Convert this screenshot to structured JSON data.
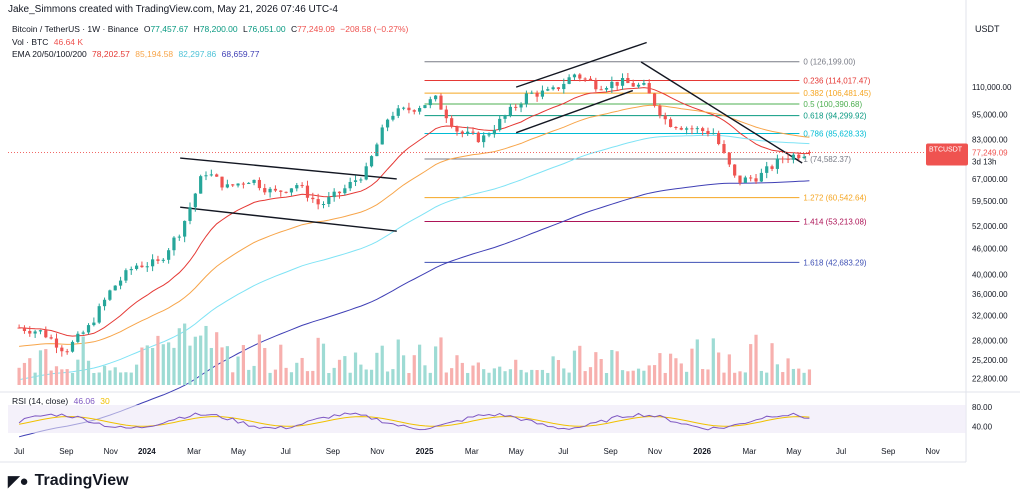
{
  "header": {
    "author_line": "Jake_Simmons created with TradingView.com, May 21, 2026 07:46 UTC-4",
    "currency": "USDT"
  },
  "legend": {
    "symbol": "Bitcoin / TetherUS · 1W · Binance",
    "o_label": "O",
    "o": "77,457.67",
    "h_label": "H",
    "h": "78,200.00",
    "l_label": "L",
    "l": "76,051.00",
    "c_label": "C",
    "c": "77,249.09",
    "change": "−208.58 (−0.27%)",
    "vol_label": "Vol · BTC",
    "vol": "46.64 K",
    "ema_label": "EMA 20/50/100/200",
    "ema20": "78,202.57",
    "ema50": "85,194.58",
    "ema100": "82,297.86",
    "ema200": "68,659.77",
    "rsi_label": "RSI (14, close)",
    "rsi": "46.06",
    "rsi_ma_partial": "30"
  },
  "colors": {
    "up": "#26a69a",
    "down": "#ef5350",
    "ema20": "#e53935",
    "ema50": "#f7a54a",
    "ema100": "#7fe3f5",
    "ema200": "#3f3fb5",
    "rsi": "#7e57c2",
    "rsi_ma": "#f0c000",
    "price_tag": "#ef5350"
  },
  "price_tag": {
    "symbol": "BTCUSDT",
    "price": "77,249.09",
    "countdown": "3d 13h"
  },
  "chart_data": {
    "type": "candlestick",
    "title": "Bitcoin / TetherUS · 1W · Binance",
    "y_scale": "log",
    "y_ticks": [
      "110,000.00",
      "95,000.00",
      "83,000.00",
      "67,000.00",
      "59,500.00",
      "52,000.00",
      "46,000.00",
      "40,000.00",
      "36,000.00",
      "32,000.00",
      "28,000.00",
      "25,200.00",
      "22,800.00"
    ],
    "x_ticks": [
      "Jul",
      "Sep",
      "Nov",
      "2024",
      "Mar",
      "May",
      "Jul",
      "Sep",
      "Nov",
      "2025",
      "Mar",
      "May",
      "Jul",
      "Sep",
      "Nov",
      "2026",
      "Mar",
      "May",
      "Jul",
      "Sep",
      "Nov"
    ],
    "price_anchors": [
      [
        "2023-07",
        30000
      ],
      [
        "2023-08",
        29300
      ],
      [
        "2023-09",
        26500
      ],
      [
        "2023-10",
        30000
      ],
      [
        "2023-11",
        37000
      ],
      [
        "2023-12",
        42000
      ],
      [
        "2024-01",
        42500
      ],
      [
        "2024-02",
        51000
      ],
      [
        "2024-03",
        70000
      ],
      [
        "2024-04",
        64000
      ],
      [
        "2024-05",
        67000
      ],
      [
        "2024-06",
        62000
      ],
      [
        "2024-07",
        65000
      ],
      [
        "2024-08",
        58000
      ],
      [
        "2024-09",
        63000
      ],
      [
        "2024-10",
        70000
      ],
      [
        "2024-11",
        95000
      ],
      [
        "2024-12",
        98000
      ],
      [
        "2025-01",
        103000
      ],
      [
        "2025-02",
        86000
      ],
      [
        "2025-03",
        83000
      ],
      [
        "2025-04",
        94000
      ],
      [
        "2025-05",
        106000
      ],
      [
        "2025-06",
        107000
      ],
      [
        "2025-07",
        118000
      ],
      [
        "2025-08",
        111000
      ],
      [
        "2025-09",
        113000
      ],
      [
        "2025-10",
        110000
      ],
      [
        "2025-11",
        91000
      ],
      [
        "2025-12",
        88000
      ],
      [
        "2026-01",
        86000
      ],
      [
        "2026-02",
        66000
      ],
      [
        "2026-03",
        68000
      ],
      [
        "2026-04",
        75000
      ],
      [
        "2026-05",
        77249
      ]
    ],
    "fib_levels": [
      {
        "ratio": "0",
        "price": "126,199.00",
        "label": "0 (126,199.00)",
        "color": "#787b86"
      },
      {
        "ratio": "0.236",
        "price": "114,017.47",
        "label": "0.236 (114,017.47)",
        "color": "#e53935"
      },
      {
        "ratio": "0.382",
        "price": "106,481.45",
        "label": "0.382 (106,481.45)",
        "color": "#f5a623"
      },
      {
        "ratio": "0.5",
        "price": "100,390.68",
        "label": "0.5 (100,390.68)",
        "color": "#4caf50"
      },
      {
        "ratio": "0.618",
        "price": "94,299.92",
        "label": "0.618 (94,299.92)",
        "color": "#089981"
      },
      {
        "ratio": "0.786",
        "price": "85,628.33",
        "label": "0.786 (85,628.33)",
        "color": "#00bcd4"
      },
      {
        "ratio": "1",
        "price": "74,582.37",
        "label": "1 (74,582.37)",
        "color": "#787b86"
      },
      {
        "ratio": "1.272",
        "price": "60,542.64",
        "label": "1.272 (60,542.64)",
        "color": "#f5a623"
      },
      {
        "ratio": "1.414",
        "price": "53,213.08",
        "label": "1.414 (53,213.08)",
        "color": "#ad1457"
      },
      {
        "ratio": "1.618",
        "price": "42,683.29",
        "label": "1.618 (42,683.29)",
        "color": "#3f51b5"
      }
    ],
    "rsi_ticks": [
      "80.00",
      "40.00"
    ],
    "grid": true,
    "legend_position": "top-left"
  },
  "brand": {
    "name": "TradingView"
  }
}
